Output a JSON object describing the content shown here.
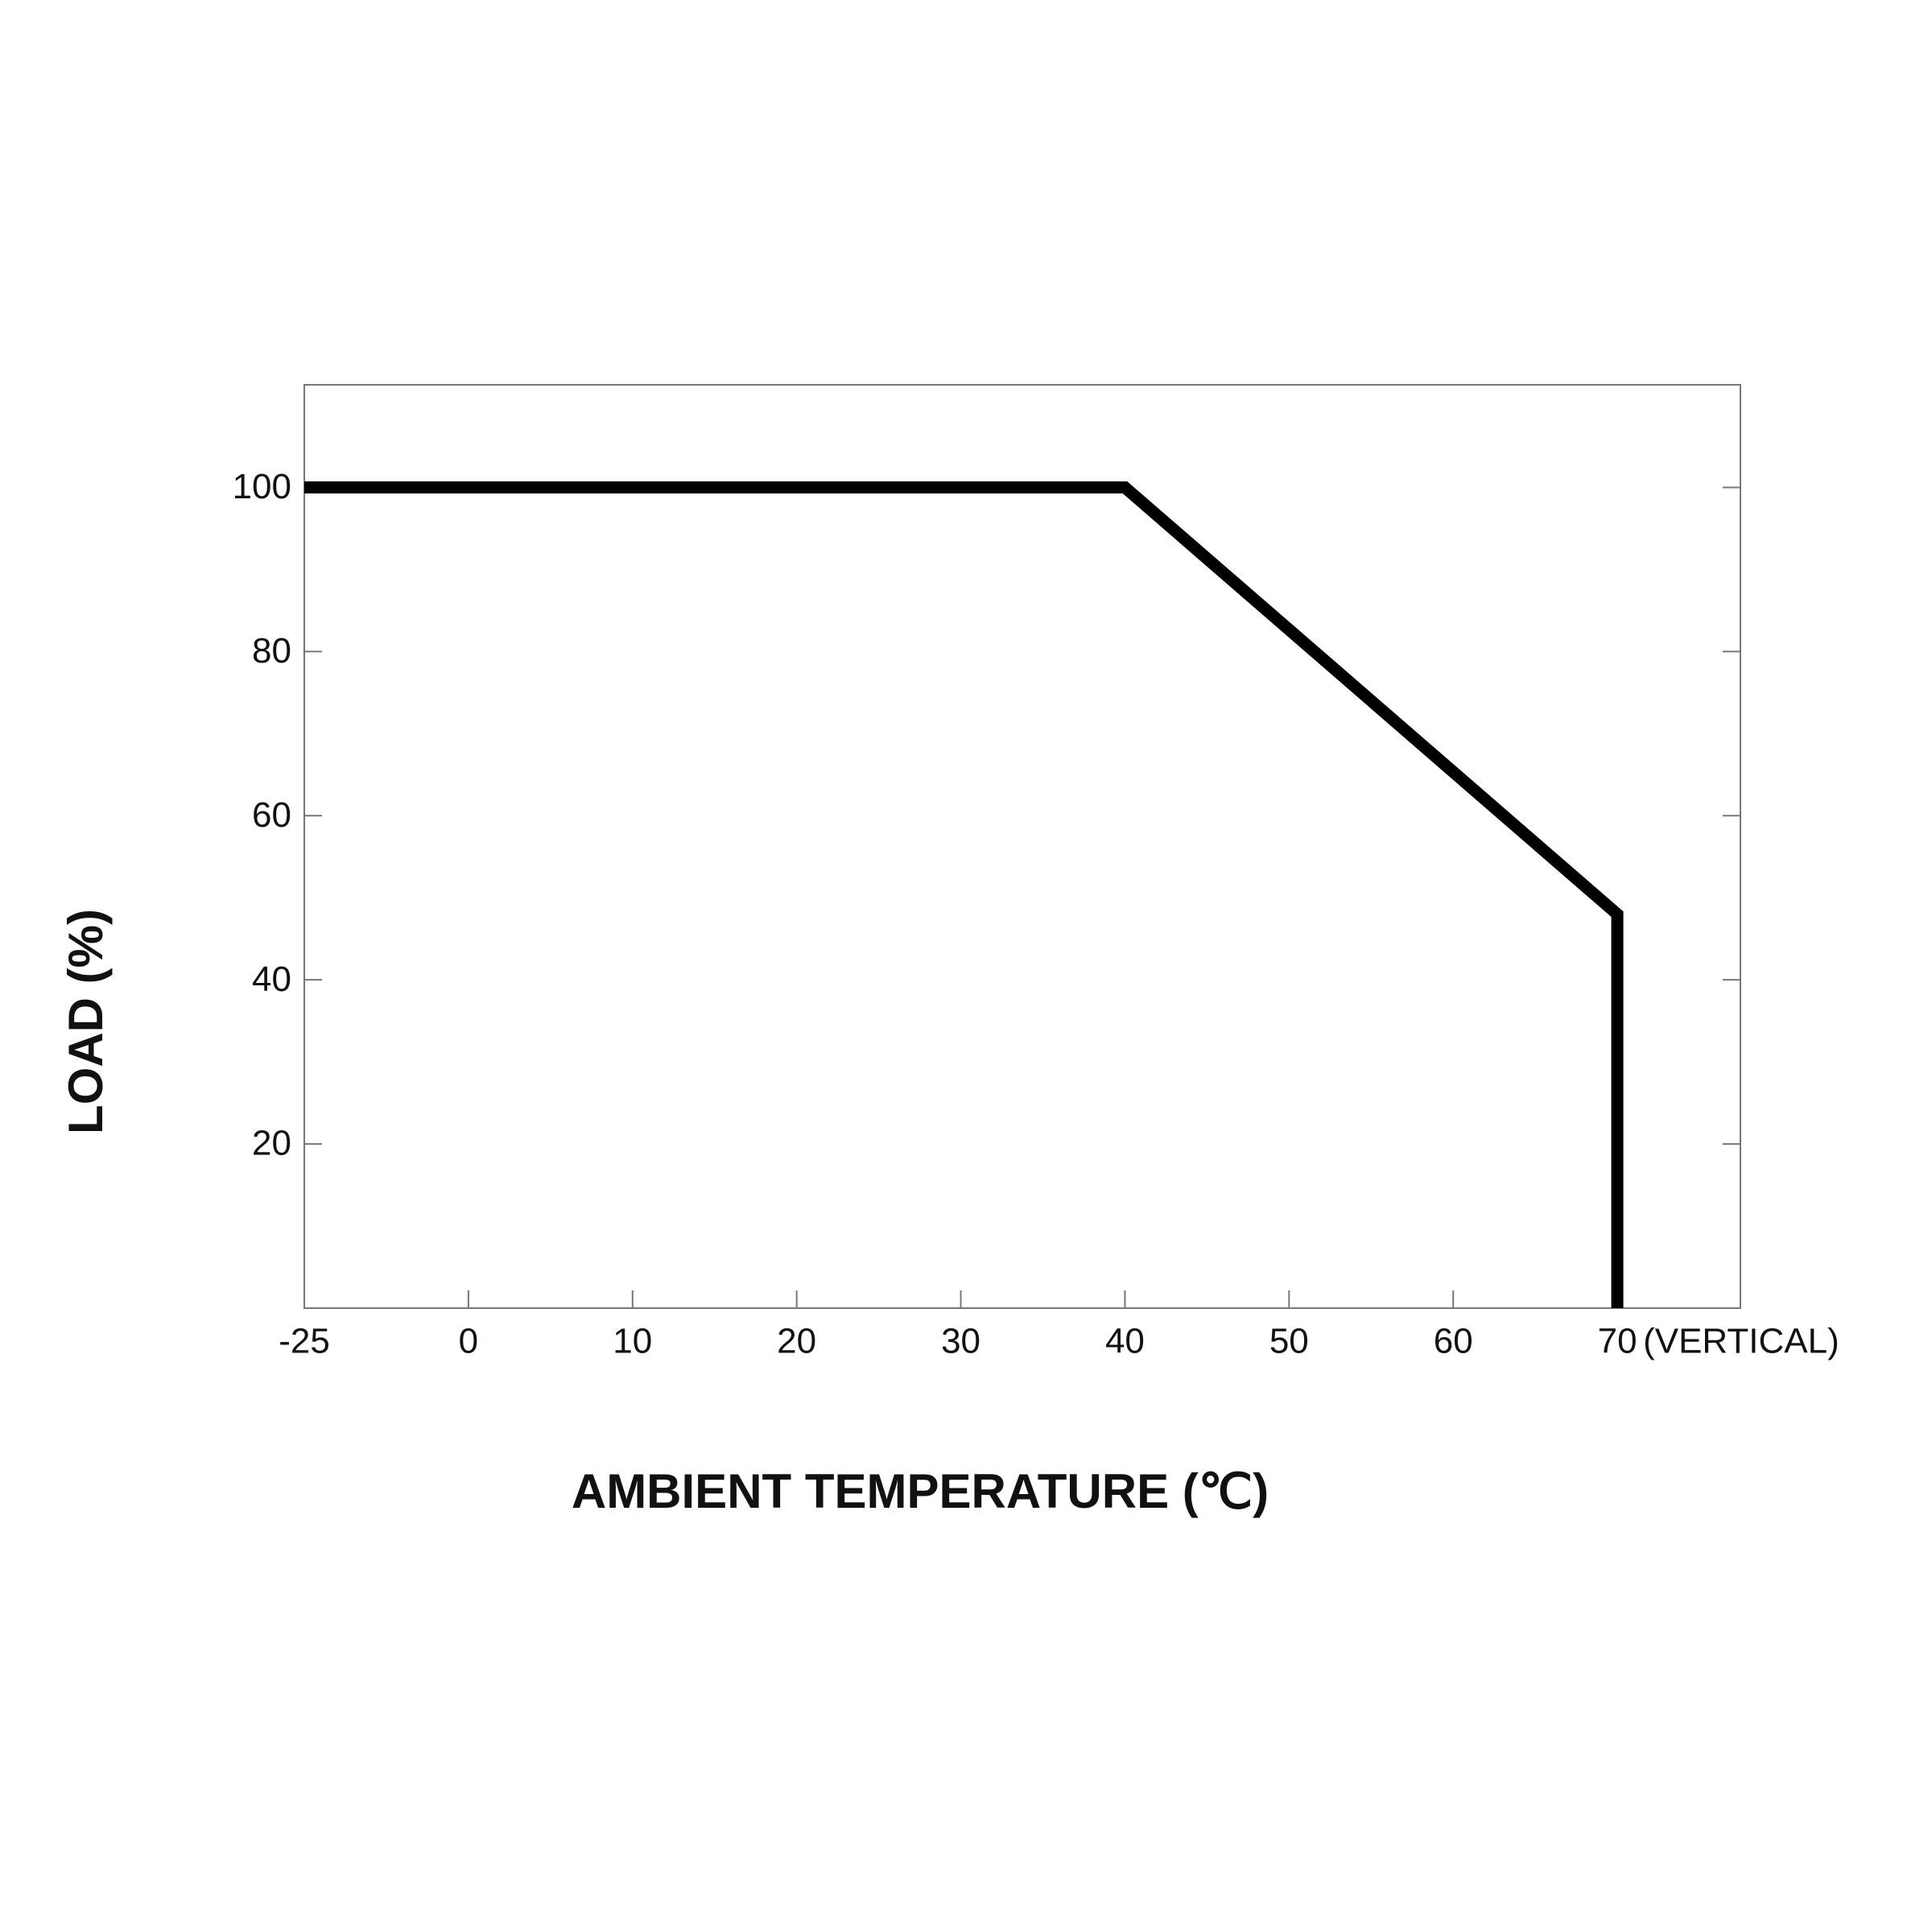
{
  "chart_data": {
    "type": "line",
    "x_label": "AMBIENT TEMPERATURE (℃)",
    "y_label": "LOAD (%)",
    "annotation": "(VERTICAL)",
    "x": [
      -25,
      40,
      70,
      70
    ],
    "series": [
      {
        "color": "#000000",
        "values": [
          100,
          100,
          48,
          0
        ]
      }
    ],
    "xlim": [
      -25,
      77.5
    ],
    "xticks": [
      -25,
      0,
      10,
      20,
      30,
      40,
      50,
      60,
      70
    ],
    "ylim": [
      0,
      112.5
    ],
    "yticks": [
      20,
      40,
      60,
      80,
      100
    ],
    "grid": false
  }
}
